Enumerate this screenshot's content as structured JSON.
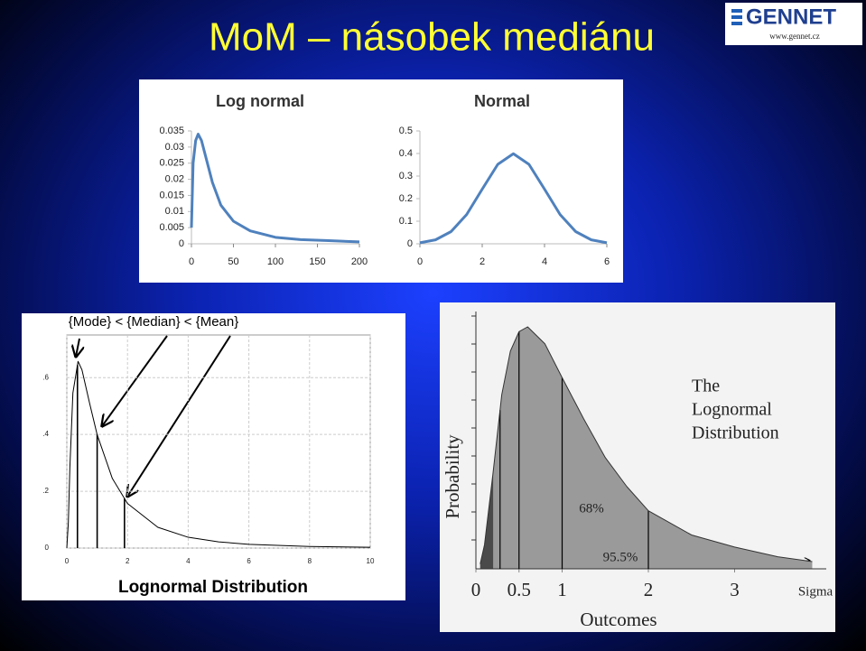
{
  "slide": {
    "title": "MoM – násobek mediánu",
    "logo": {
      "name": "GENNET",
      "url": "www.gennet.cz"
    }
  },
  "chart_data": [
    {
      "type": "line",
      "title": "Log normal",
      "color": "#4f81bd",
      "x": [
        0,
        2,
        5,
        8,
        12,
        18,
        25,
        35,
        50,
        70,
        100,
        130,
        160,
        200
      ],
      "values": [
        0.005,
        0.025,
        0.032,
        0.034,
        0.032,
        0.026,
        0.019,
        0.012,
        0.007,
        0.004,
        0.002,
        0.0013,
        0.001,
        0.0006
      ],
      "xlim": [
        0,
        200
      ],
      "ylim": [
        0,
        0.035
      ],
      "xticks": [
        0,
        50,
        100,
        150,
        200
      ],
      "yticks": [
        0,
        0.005,
        0.01,
        0.015,
        0.02,
        0.025,
        0.03,
        0.035
      ]
    },
    {
      "type": "line",
      "title": "Normal",
      "color": "#4f81bd",
      "x": [
        0,
        0.5,
        1,
        1.5,
        2,
        2.5,
        3,
        3.5,
        4,
        4.5,
        5,
        5.5,
        6
      ],
      "values": [
        0.0044,
        0.0175,
        0.054,
        0.1295,
        0.242,
        0.352,
        0.399,
        0.352,
        0.242,
        0.1295,
        0.054,
        0.0175,
        0.0044
      ],
      "xlim": [
        0,
        6
      ],
      "ylim": [
        0,
        0.5
      ],
      "xticks": [
        0,
        2,
        4,
        6
      ],
      "yticks": [
        0,
        0.1,
        0.2,
        0.3,
        0.4,
        0.5
      ]
    },
    {
      "type": "line",
      "title": "{Mode} < {Median} < {Mean}",
      "xlabel": "Lognormal Distribution",
      "color": "#000000",
      "grid": true,
      "x": [
        0,
        0.05,
        0.1,
        0.2,
        0.37,
        0.5,
        0.75,
        1,
        1.5,
        2,
        3,
        4,
        5,
        6,
        8,
        10
      ],
      "values": [
        0,
        0.089,
        0.282,
        0.546,
        0.657,
        0.627,
        0.51,
        0.399,
        0.245,
        0.157,
        0.073,
        0.038,
        0.022,
        0.013,
        0.0057,
        0.0028
      ],
      "vlines": [
        0.35,
        1,
        1.9
      ],
      "xlim": [
        0,
        10
      ],
      "ylim": [
        0,
        0.75
      ],
      "xticks": [
        0,
        2,
        4,
        6,
        8,
        10
      ],
      "yticks": [
        0,
        {
          "value": 0.2,
          "label": ".2"
        },
        {
          "value": 0.4,
          "label": ".4"
        },
        {
          "value": 0.6,
          "label": ".6"
        }
      ]
    },
    {
      "type": "line",
      "title_lines": [
        "The",
        "Lognormal",
        "Distribution"
      ],
      "xlabel": "Outcomes",
      "ylabel": "Probability",
      "xlabel_end": "Sigma",
      "color": "#333333",
      "annotations": [
        "68%",
        "95.5%"
      ],
      "x": [
        0.05,
        0.1,
        0.2,
        0.3,
        0.4,
        0.5,
        0.6,
        0.8,
        1,
        1.25,
        1.5,
        1.75,
        2,
        2.5,
        3,
        3.5,
        3.9
      ],
      "values": [
        0.02,
        0.1,
        0.4,
        0.72,
        0.9,
        0.98,
        1.0,
        0.93,
        0.79,
        0.62,
        0.46,
        0.34,
        0.24,
        0.14,
        0.09,
        0.05,
        0.03
      ],
      "vlines": [
        0.28,
        0.5,
        1,
        2
      ],
      "xlim": [
        0,
        4
      ],
      "ylim": [
        0,
        1
      ],
      "xticks": [
        0,
        0.5,
        1,
        2,
        3
      ]
    }
  ]
}
